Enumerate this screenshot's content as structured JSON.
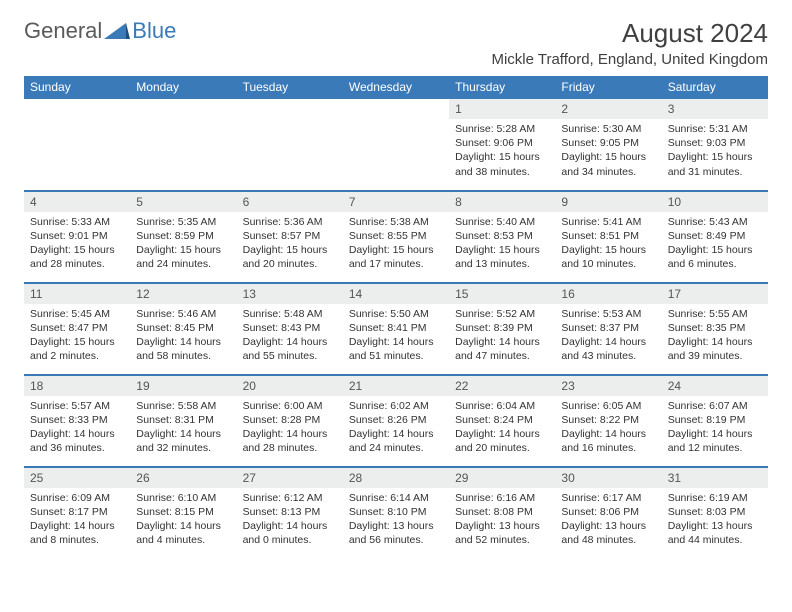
{
  "logo": {
    "word1": "General",
    "word2": "Blue"
  },
  "title": "August 2024",
  "location": "Mickle Trafford, England, United Kingdom",
  "colors": {
    "header_bg": "#3a7ab8",
    "header_fg": "#ffffff",
    "daynum_bg": "#eceded",
    "text": "#333333",
    "rule": "#3a7ab8"
  },
  "dayNames": [
    "Sunday",
    "Monday",
    "Tuesday",
    "Wednesday",
    "Thursday",
    "Friday",
    "Saturday"
  ],
  "weeks": [
    [
      {
        "n": "",
        "sunrise": "",
        "sunset": "",
        "day": ""
      },
      {
        "n": "",
        "sunrise": "",
        "sunset": "",
        "day": ""
      },
      {
        "n": "",
        "sunrise": "",
        "sunset": "",
        "day": ""
      },
      {
        "n": "",
        "sunrise": "",
        "sunset": "",
        "day": ""
      },
      {
        "n": "1",
        "sunrise": "Sunrise: 5:28 AM",
        "sunset": "Sunset: 9:06 PM",
        "day": "Daylight: 15 hours and 38 minutes."
      },
      {
        "n": "2",
        "sunrise": "Sunrise: 5:30 AM",
        "sunset": "Sunset: 9:05 PM",
        "day": "Daylight: 15 hours and 34 minutes."
      },
      {
        "n": "3",
        "sunrise": "Sunrise: 5:31 AM",
        "sunset": "Sunset: 9:03 PM",
        "day": "Daylight: 15 hours and 31 minutes."
      }
    ],
    [
      {
        "n": "4",
        "sunrise": "Sunrise: 5:33 AM",
        "sunset": "Sunset: 9:01 PM",
        "day": "Daylight: 15 hours and 28 minutes."
      },
      {
        "n": "5",
        "sunrise": "Sunrise: 5:35 AM",
        "sunset": "Sunset: 8:59 PM",
        "day": "Daylight: 15 hours and 24 minutes."
      },
      {
        "n": "6",
        "sunrise": "Sunrise: 5:36 AM",
        "sunset": "Sunset: 8:57 PM",
        "day": "Daylight: 15 hours and 20 minutes."
      },
      {
        "n": "7",
        "sunrise": "Sunrise: 5:38 AM",
        "sunset": "Sunset: 8:55 PM",
        "day": "Daylight: 15 hours and 17 minutes."
      },
      {
        "n": "8",
        "sunrise": "Sunrise: 5:40 AM",
        "sunset": "Sunset: 8:53 PM",
        "day": "Daylight: 15 hours and 13 minutes."
      },
      {
        "n": "9",
        "sunrise": "Sunrise: 5:41 AM",
        "sunset": "Sunset: 8:51 PM",
        "day": "Daylight: 15 hours and 10 minutes."
      },
      {
        "n": "10",
        "sunrise": "Sunrise: 5:43 AM",
        "sunset": "Sunset: 8:49 PM",
        "day": "Daylight: 15 hours and 6 minutes."
      }
    ],
    [
      {
        "n": "11",
        "sunrise": "Sunrise: 5:45 AM",
        "sunset": "Sunset: 8:47 PM",
        "day": "Daylight: 15 hours and 2 minutes."
      },
      {
        "n": "12",
        "sunrise": "Sunrise: 5:46 AM",
        "sunset": "Sunset: 8:45 PM",
        "day": "Daylight: 14 hours and 58 minutes."
      },
      {
        "n": "13",
        "sunrise": "Sunrise: 5:48 AM",
        "sunset": "Sunset: 8:43 PM",
        "day": "Daylight: 14 hours and 55 minutes."
      },
      {
        "n": "14",
        "sunrise": "Sunrise: 5:50 AM",
        "sunset": "Sunset: 8:41 PM",
        "day": "Daylight: 14 hours and 51 minutes."
      },
      {
        "n": "15",
        "sunrise": "Sunrise: 5:52 AM",
        "sunset": "Sunset: 8:39 PM",
        "day": "Daylight: 14 hours and 47 minutes."
      },
      {
        "n": "16",
        "sunrise": "Sunrise: 5:53 AM",
        "sunset": "Sunset: 8:37 PM",
        "day": "Daylight: 14 hours and 43 minutes."
      },
      {
        "n": "17",
        "sunrise": "Sunrise: 5:55 AM",
        "sunset": "Sunset: 8:35 PM",
        "day": "Daylight: 14 hours and 39 minutes."
      }
    ],
    [
      {
        "n": "18",
        "sunrise": "Sunrise: 5:57 AM",
        "sunset": "Sunset: 8:33 PM",
        "day": "Daylight: 14 hours and 36 minutes."
      },
      {
        "n": "19",
        "sunrise": "Sunrise: 5:58 AM",
        "sunset": "Sunset: 8:31 PM",
        "day": "Daylight: 14 hours and 32 minutes."
      },
      {
        "n": "20",
        "sunrise": "Sunrise: 6:00 AM",
        "sunset": "Sunset: 8:28 PM",
        "day": "Daylight: 14 hours and 28 minutes."
      },
      {
        "n": "21",
        "sunrise": "Sunrise: 6:02 AM",
        "sunset": "Sunset: 8:26 PM",
        "day": "Daylight: 14 hours and 24 minutes."
      },
      {
        "n": "22",
        "sunrise": "Sunrise: 6:04 AM",
        "sunset": "Sunset: 8:24 PM",
        "day": "Daylight: 14 hours and 20 minutes."
      },
      {
        "n": "23",
        "sunrise": "Sunrise: 6:05 AM",
        "sunset": "Sunset: 8:22 PM",
        "day": "Daylight: 14 hours and 16 minutes."
      },
      {
        "n": "24",
        "sunrise": "Sunrise: 6:07 AM",
        "sunset": "Sunset: 8:19 PM",
        "day": "Daylight: 14 hours and 12 minutes."
      }
    ],
    [
      {
        "n": "25",
        "sunrise": "Sunrise: 6:09 AM",
        "sunset": "Sunset: 8:17 PM",
        "day": "Daylight: 14 hours and 8 minutes."
      },
      {
        "n": "26",
        "sunrise": "Sunrise: 6:10 AM",
        "sunset": "Sunset: 8:15 PM",
        "day": "Daylight: 14 hours and 4 minutes."
      },
      {
        "n": "27",
        "sunrise": "Sunrise: 6:12 AM",
        "sunset": "Sunset: 8:13 PM",
        "day": "Daylight: 14 hours and 0 minutes."
      },
      {
        "n": "28",
        "sunrise": "Sunrise: 6:14 AM",
        "sunset": "Sunset: 8:10 PM",
        "day": "Daylight: 13 hours and 56 minutes."
      },
      {
        "n": "29",
        "sunrise": "Sunrise: 6:16 AM",
        "sunset": "Sunset: 8:08 PM",
        "day": "Daylight: 13 hours and 52 minutes."
      },
      {
        "n": "30",
        "sunrise": "Sunrise: 6:17 AM",
        "sunset": "Sunset: 8:06 PM",
        "day": "Daylight: 13 hours and 48 minutes."
      },
      {
        "n": "31",
        "sunrise": "Sunrise: 6:19 AM",
        "sunset": "Sunset: 8:03 PM",
        "day": "Daylight: 13 hours and 44 minutes."
      }
    ]
  ]
}
